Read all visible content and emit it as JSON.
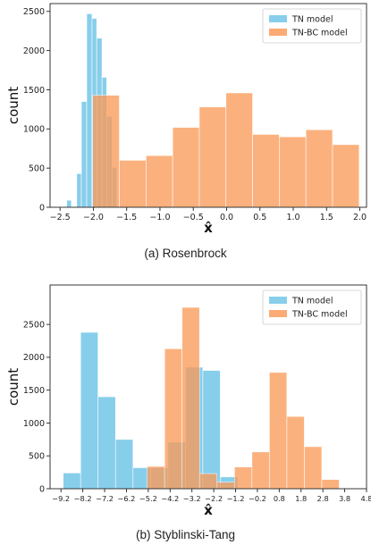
{
  "chart_data": [
    {
      "type": "bar",
      "title": "",
      "caption": "(a) Rosenbrock",
      "xlabel": "x̂",
      "ylabel": "count",
      "xlim": [
        -2.65,
        2.1
      ],
      "ylim": [
        0,
        2600
      ],
      "xticks": [
        -2.5,
        -2.0,
        -1.5,
        -1.0,
        -0.5,
        0.0,
        0.5,
        1.0,
        1.5,
        2.0
      ],
      "xtick_labels": [
        "−2.5",
        "−2.0",
        "−1.5",
        "−1.0",
        "−0.5",
        "0.0",
        "0.5",
        "1.0",
        "1.5",
        "2.0"
      ],
      "yticks": [
        0,
        500,
        1000,
        1500,
        2000,
        2500
      ],
      "ytick_labels": [
        "0",
        "500",
        "1000",
        "1500",
        "2000",
        "2500"
      ],
      "legend_position": "top-right",
      "series": [
        {
          "name": "TN model",
          "color": "#87ceeb",
          "bins": [
            {
              "x0": -2.4,
              "x1": -2.33,
              "value": 90
            },
            {
              "x0": -2.33,
              "x1": -2.25,
              "value": 0
            },
            {
              "x0": -2.25,
              "x1": -2.18,
              "value": 430
            },
            {
              "x0": -2.18,
              "x1": -2.1,
              "value": 1350
            },
            {
              "x0": -2.1,
              "x1": -2.02,
              "value": 2470
            },
            {
              "x0": -2.02,
              "x1": -1.95,
              "value": 2410
            },
            {
              "x0": -1.95,
              "x1": -1.87,
              "value": 2160
            },
            {
              "x0": -1.87,
              "x1": -1.8,
              "value": 1660
            },
            {
              "x0": -1.8,
              "x1": -1.72,
              "value": 1160
            },
            {
              "x0": -1.72,
              "x1": -1.65,
              "value": 510
            }
          ]
        },
        {
          "name": "TN-BC model",
          "color": "#fa9c5a",
          "bins": [
            {
              "x0": -2.01,
              "x1": -1.61,
              "value": 1430
            },
            {
              "x0": -1.61,
              "x1": -1.21,
              "value": 600
            },
            {
              "x0": -1.21,
              "x1": -0.81,
              "value": 660
            },
            {
              "x0": -0.81,
              "x1": -0.41,
              "value": 1020
            },
            {
              "x0": -0.41,
              "x1": -0.01,
              "value": 1280
            },
            {
              "x0": -0.01,
              "x1": 0.39,
              "value": 1460
            },
            {
              "x0": 0.39,
              "x1": 0.79,
              "value": 930
            },
            {
              "x0": 0.79,
              "x1": 1.19,
              "value": 900
            },
            {
              "x0": 1.19,
              "x1": 1.59,
              "value": 990
            },
            {
              "x0": 1.59,
              "x1": 1.99,
              "value": 800
            }
          ]
        }
      ]
    },
    {
      "type": "bar",
      "title": "",
      "caption": "(b) Styblinski-Tang",
      "xlabel": "x̂",
      "ylabel": "count",
      "xlim": [
        -9.7,
        4.8
      ],
      "ylim": [
        0,
        3100
      ],
      "xticks": [
        -9.2,
        -8.2,
        -7.2,
        -6.2,
        -5.2,
        -4.2,
        -3.2,
        -2.2,
        -1.2,
        -0.2,
        0.8,
        1.8,
        2.8,
        3.8,
        4.8
      ],
      "xtick_labels": [
        "−9.2",
        "−8.2",
        "−7.2",
        "−6.2",
        "−5.2",
        "−4.2",
        "−3.2",
        "−2.2",
        "−1.2",
        "−0.2",
        "0.8",
        "1.8",
        "2.8",
        "3.8",
        "4.8"
      ],
      "yticks": [
        0,
        500,
        1000,
        1500,
        2000,
        2500
      ],
      "ytick_labels": [
        "0",
        "500",
        "1000",
        "1500",
        "2000",
        "2500"
      ],
      "legend_position": "top-right",
      "series": [
        {
          "name": "TN model",
          "color": "#87ceeb",
          "bins": [
            {
              "x0": -9.1,
              "x1": -8.3,
              "value": 240
            },
            {
              "x0": -8.3,
              "x1": -7.5,
              "value": 2380
            },
            {
              "x0": -7.5,
              "x1": -6.7,
              "value": 1400
            },
            {
              "x0": -6.7,
              "x1": -5.9,
              "value": 750
            },
            {
              "x0": -5.9,
              "x1": -5.1,
              "value": 320
            },
            {
              "x0": -5.1,
              "x1": -4.3,
              "value": 320
            },
            {
              "x0": -4.3,
              "x1": -3.5,
              "value": 710
            },
            {
              "x0": -3.5,
              "x1": -2.7,
              "value": 1850
            },
            {
              "x0": -2.7,
              "x1": -1.9,
              "value": 1800
            },
            {
              "x0": -1.9,
              "x1": -1.1,
              "value": 180
            }
          ]
        },
        {
          "name": "TN-BC model",
          "color": "#fa9c5a",
          "bins": [
            {
              "x0": -5.25,
              "x1": -4.45,
              "value": 340
            },
            {
              "x0": -4.45,
              "x1": -3.65,
              "value": 2130
            },
            {
              "x0": -3.65,
              "x1": -2.85,
              "value": 2760
            },
            {
              "x0": -2.85,
              "x1": -2.05,
              "value": 230
            },
            {
              "x0": -2.05,
              "x1": -1.25,
              "value": 100
            },
            {
              "x0": -1.25,
              "x1": -0.45,
              "value": 330
            },
            {
              "x0": -0.45,
              "x1": 0.35,
              "value": 560
            },
            {
              "x0": 0.35,
              "x1": 1.15,
              "value": 1770
            },
            {
              "x0": 1.15,
              "x1": 1.95,
              "value": 1100
            },
            {
              "x0": 1.95,
              "x1": 2.75,
              "value": 640
            },
            {
              "x0": 2.75,
              "x1": 3.55,
              "value": 140
            }
          ]
        }
      ]
    }
  ]
}
